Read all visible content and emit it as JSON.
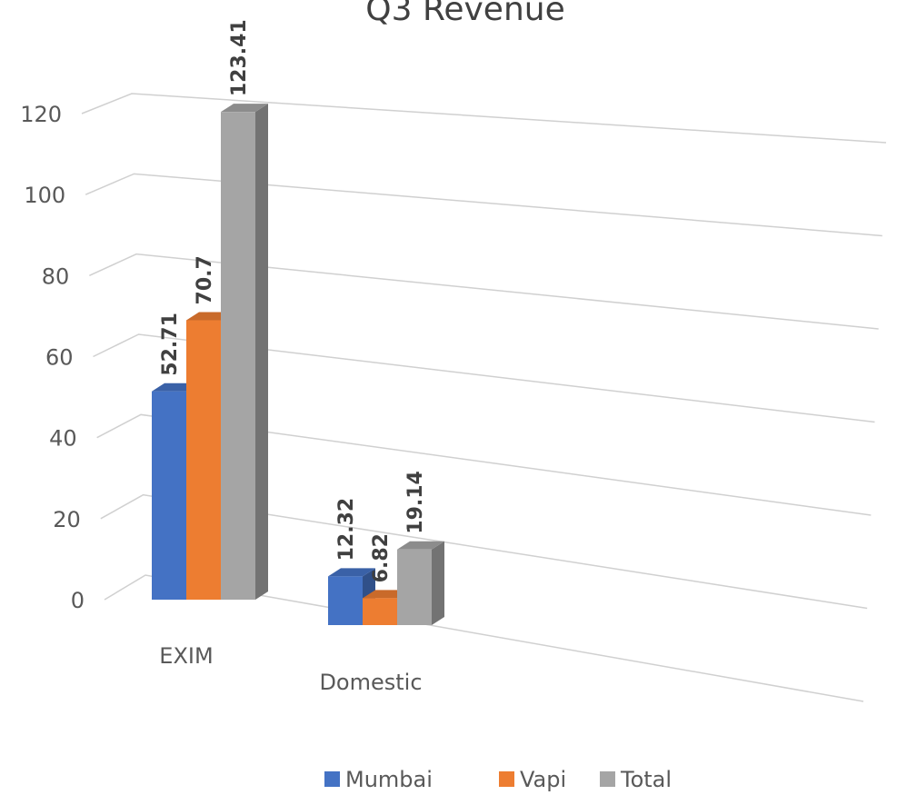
{
  "chart_data": {
    "type": "bar3d",
    "title": "Q3 Revenue",
    "categories": [
      "EXIM",
      "Domestic"
    ],
    "series": [
      {
        "name": "Mumbai",
        "color": "#4472c4",
        "values": [
          52.71,
          12.32
        ]
      },
      {
        "name": "Vapi",
        "color": "#ed7d31",
        "values": [
          70.7,
          6.82
        ]
      },
      {
        "name": "Total",
        "color": "#a5a5a5",
        "values": [
          123.41,
          19.14
        ]
      }
    ],
    "ylim": [
      0,
      120
    ],
    "yticks": [
      0,
      20,
      40,
      60,
      80,
      100,
      120
    ],
    "grid": true,
    "legend": "bottom"
  }
}
